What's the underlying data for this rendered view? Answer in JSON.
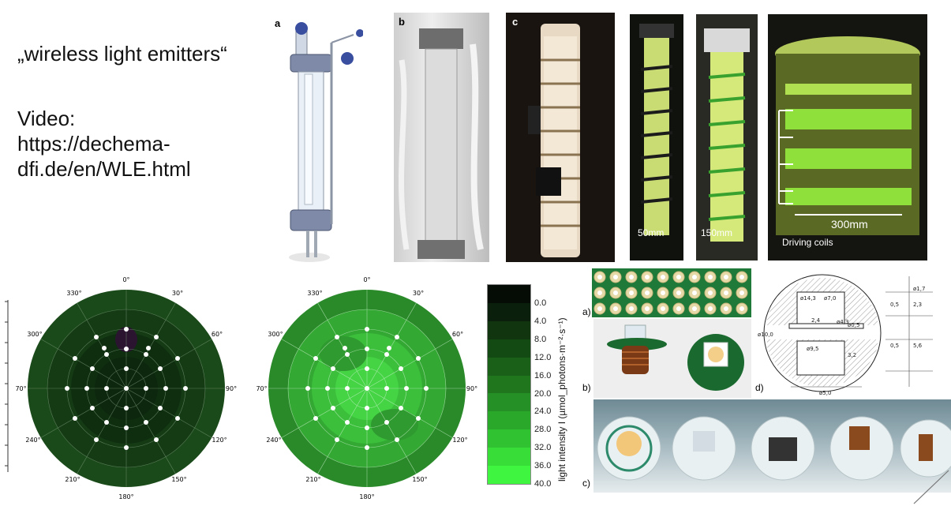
{
  "headline": "„wireless light emitters“",
  "video": "Video:\nhttps://dechema-\ndfi.de/en/WLE.html",
  "reactor_panels": {
    "a": "a",
    "b": "b",
    "c": "c"
  },
  "reactor_sizes": {
    "small": "50mm",
    "medium": "150mm",
    "large": "300mm",
    "coils": "Driving coils"
  },
  "polar": {
    "angles": [
      "0°",
      "30°",
      "60°",
      "90°",
      "120°",
      "150°",
      "180°",
      "210°",
      "240°",
      "270°",
      "300°",
      "330°"
    ]
  },
  "colorbar": {
    "label": "light intensity I (µmol_photons·m⁻²·s⁻¹)",
    "ticks": [
      "0.0",
      "4.0",
      "8.0",
      "12.0",
      "16.0",
      "20.0",
      "24.0",
      "28.0",
      "32.0",
      "36.0",
      "40.0"
    ],
    "colors": [
      "#050b05",
      "#0a200c",
      "#10350f",
      "#134a14",
      "#1a6018",
      "#1f761d",
      "#259025",
      "#2aa82a",
      "#31c231",
      "#38dd38",
      "#3ff53f"
    ]
  },
  "device_panels": {
    "a": "a)",
    "b": "b)",
    "c": "c)",
    "d": "d)"
  },
  "drawing_dims": [
    "ø14,3",
    "ø7,0",
    "ø4,3",
    "2,4",
    "ø10,0",
    "ø0,5",
    "ø9,5",
    "3,2",
    "0,5",
    "5,6",
    "ø1,7",
    "2,3",
    "0,5",
    "ø5,0"
  ],
  "colors": {
    "dark_green": "#1c4a1c",
    "bright_green": "#39c139",
    "text": "#111111"
  }
}
